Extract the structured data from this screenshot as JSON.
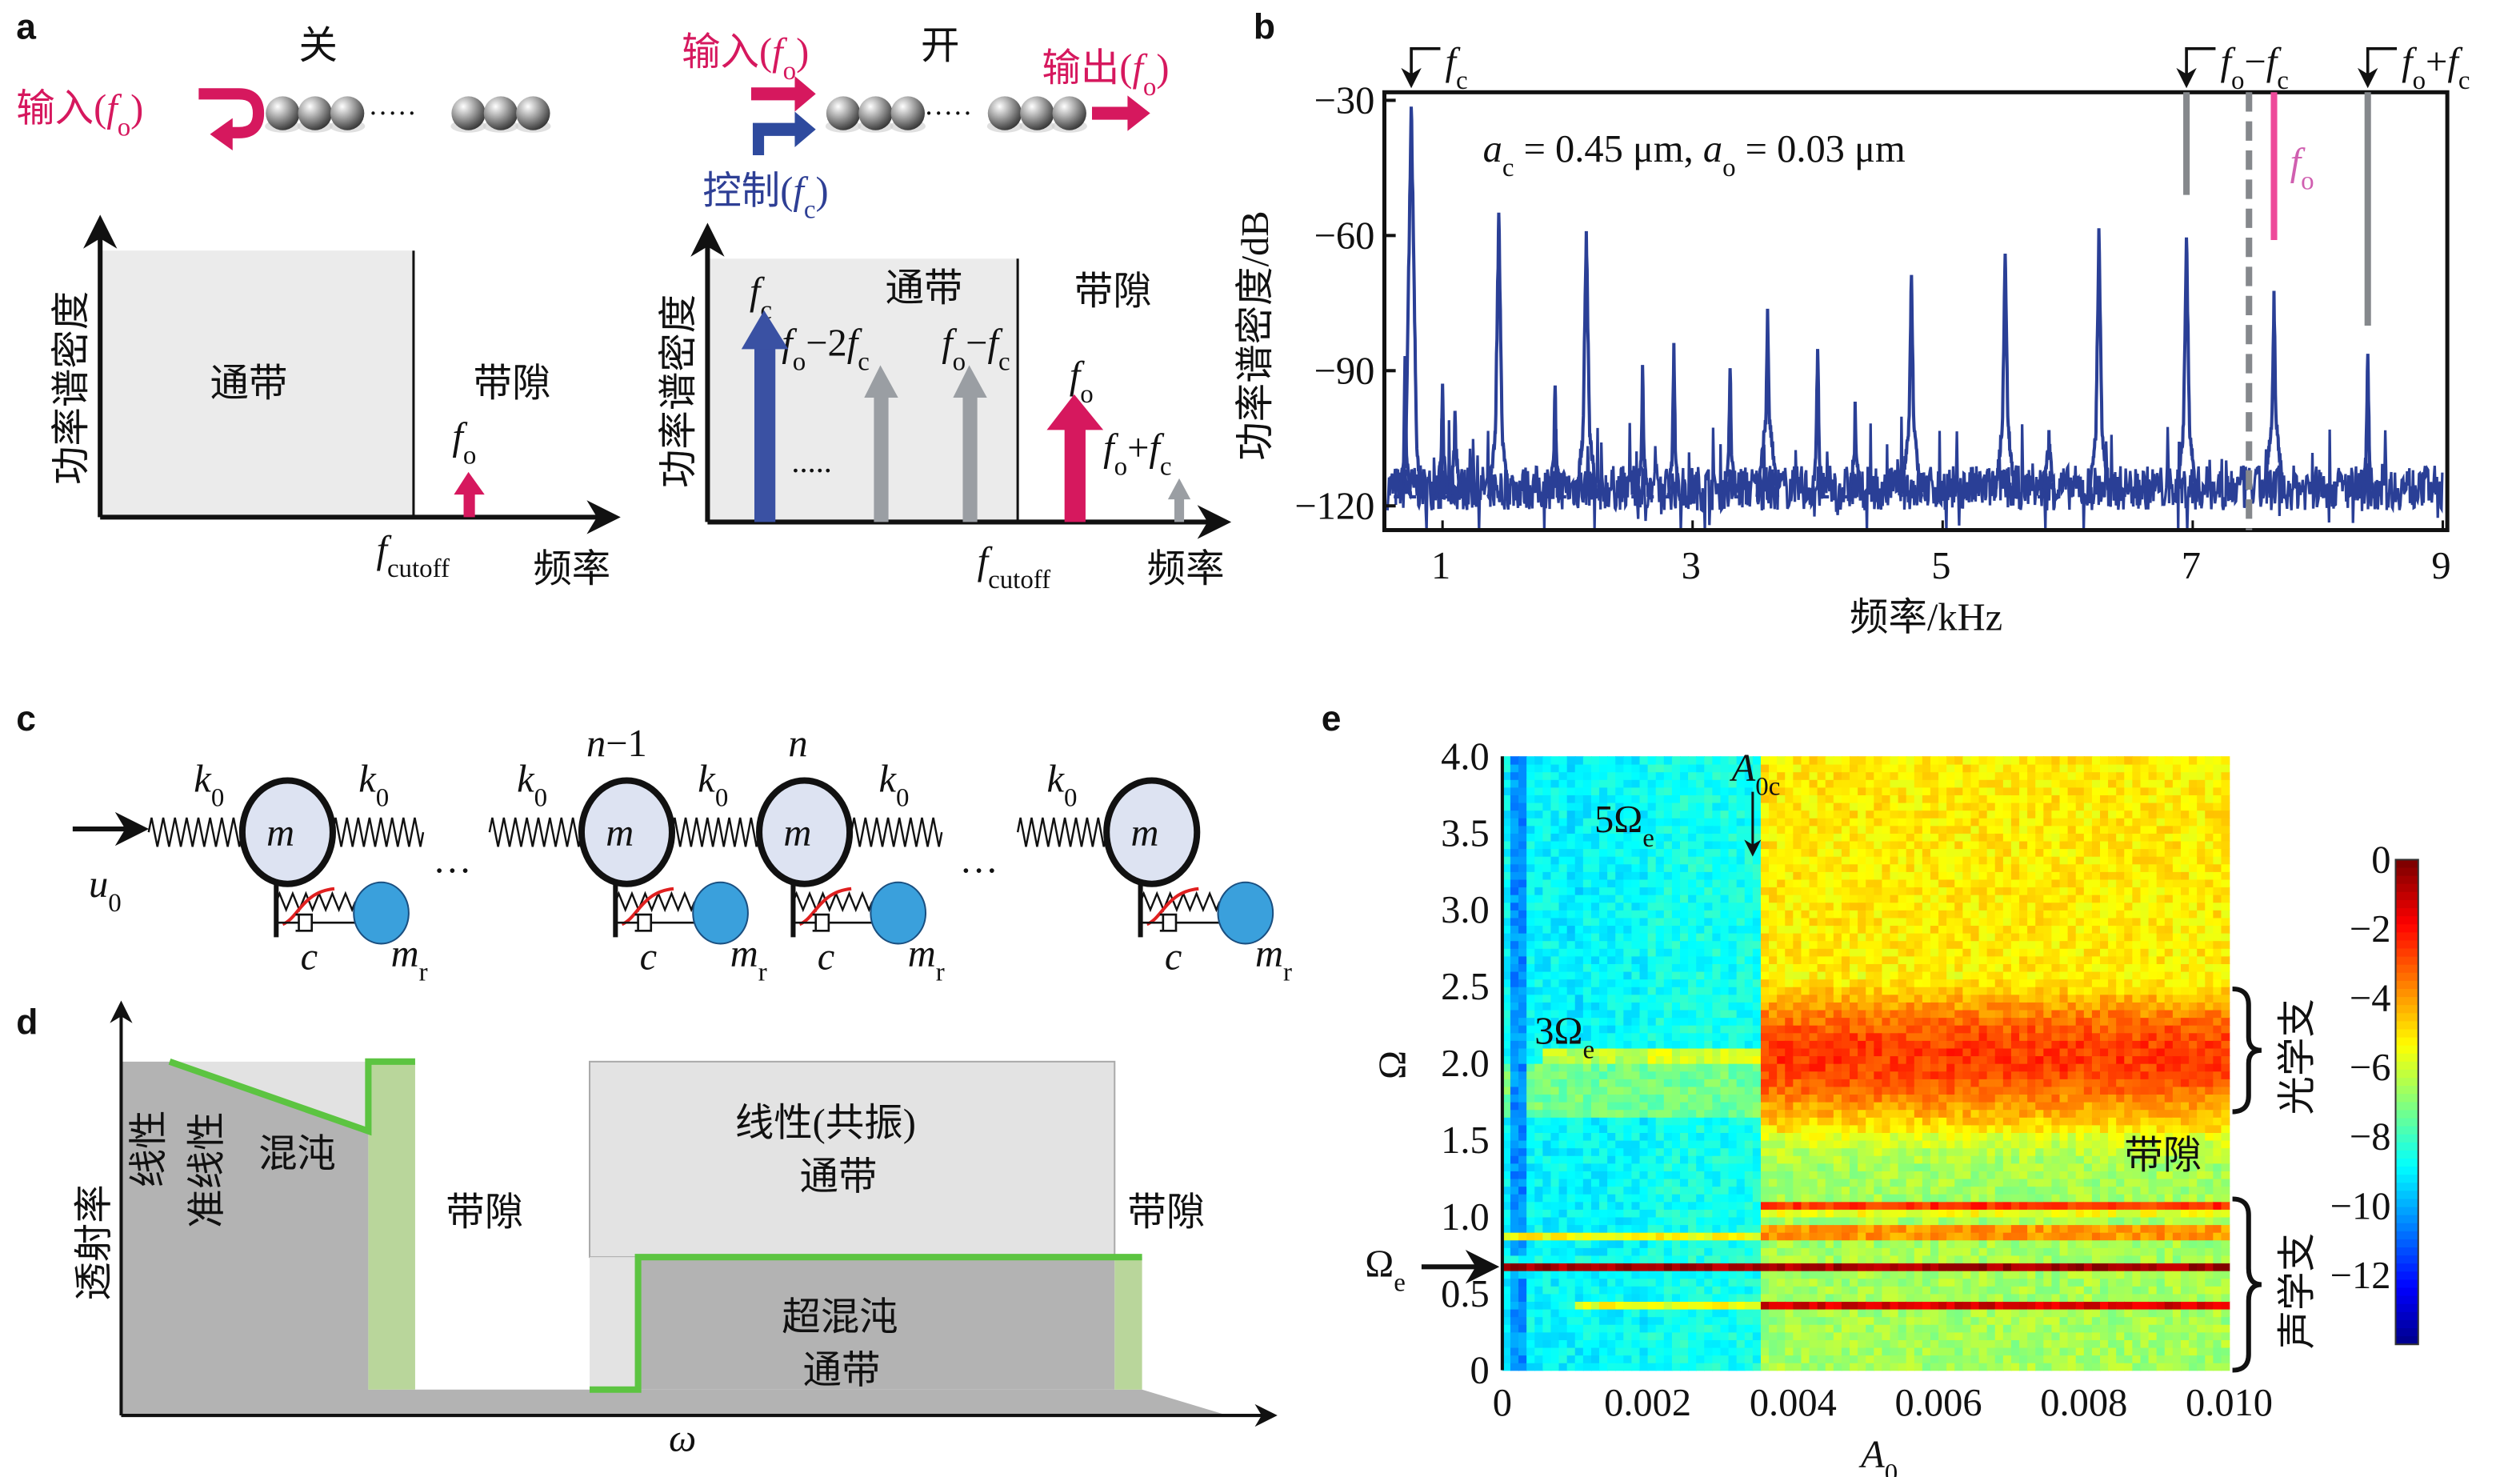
{
  "panel_labels": {
    "a": "a",
    "b": "b",
    "c": "c",
    "d": "d",
    "e": "e"
  },
  "colors": {
    "input_signal": "#d6185e",
    "control_signal": "#2e4a9e",
    "harmonic": "#9a9ea3",
    "spectrum": "#2a3f96",
    "fo_marker": "#ee4a9a",
    "chaos_line": "#5cc441",
    "chaos_band": "#b9d69b",
    "passband": "#ebebeb",
    "dark_region": "#b3b3b3"
  },
  "panel_a": {
    "off": {
      "title": "关",
      "input": "输入(*f*_{o})",
      "chain_dots": "·····",
      "passband": "通带",
      "bandgap": "带隙",
      "fo": "*f*_{o}",
      "fcutoff": "*f*_{cutoff}",
      "xlabel": "频率",
      "ylabel": "功率谱密度"
    },
    "on": {
      "title": "开",
      "input": "输入(*f*_{o})",
      "output": "输出(*f*_{o})",
      "control": "控制(*f*_{c})",
      "chain_dots": "·····",
      "passband": "通带",
      "bandgap": "带隙",
      "fc": "*f*_{c}",
      "fo_minus_2fc": "*f*_{o}−2*f*_{c}",
      "fo_minus_fc": "*f*_{o}−*f*_{c}",
      "fo": "*f*_{o}",
      "fo_plus_fc": "*f*_{o}+*f*_{c}",
      "more_dots": ".....",
      "fcutoff": "*f*_{cutoff}",
      "xlabel": "频率",
      "ylabel": "功率谱密度"
    }
  },
  "panel_c": {
    "k0": "*k*_{0}",
    "m": "*m*",
    "mr": "*m*_{r}",
    "c": "*c*",
    "u0": "*u*_{0}",
    "n_minus_1": "*n*−1",
    "n": "*n*",
    "ellipsis": "…"
  },
  "panel_d": {
    "ylabel": "透射率",
    "xlabel": "*ω*",
    "linear": "线性",
    "quasi_linear": "准线性",
    "chaos": "混沌",
    "bandgap_1": "带隙",
    "linear_resonant": "线性(共振)",
    "passband_1": "通带",
    "hyperchaos": "超混沌",
    "passband_2": "通带",
    "bandgap_2": "带隙"
  },
  "chart_data": [
    {
      "panel": "b",
      "type": "line",
      "xlabel": "频率/kHz",
      "ylabel": "功率谱密度/dB",
      "xlim": [
        0.55,
        9
      ],
      "ylim": [
        -125,
        -28
      ],
      "xticks": [
        1,
        3,
        5,
        7,
        9
      ],
      "yticks": [
        -30,
        -60,
        -90,
        -120
      ],
      "ytick_labels": [
        "−30",
        "−60",
        "−90",
        "−120"
      ],
      "annotation": "*a*_{c} = 0.45 μm, *a*_{o} = 0.03 μm",
      "noise_floor_db": -116,
      "peaks": [
        {
          "f": 0.75,
          "db": -30
        },
        {
          "f": 0.7,
          "db": -88
        },
        {
          "f": 1.0,
          "db": -92
        },
        {
          "f": 1.1,
          "db": -98
        },
        {
          "f": 1.45,
          "db": -55
        },
        {
          "f": 1.9,
          "db": -92
        },
        {
          "f": 2.15,
          "db": -58
        },
        {
          "f": 2.6,
          "db": -89
        },
        {
          "f": 2.85,
          "db": -85
        },
        {
          "f": 3.3,
          "db": -88
        },
        {
          "f": 3.6,
          "db": -77
        },
        {
          "f": 4.0,
          "db": -84
        },
        {
          "f": 4.3,
          "db": -97
        },
        {
          "f": 4.75,
          "db": -68
        },
        {
          "f": 5.5,
          "db": -63
        },
        {
          "f": 5.85,
          "db": -104
        },
        {
          "f": 6.25,
          "db": -59
        },
        {
          "f": 6.95,
          "db": -60
        },
        {
          "f": 7.65,
          "db": -73
        },
        {
          "f": 8.4,
          "db": -85
        }
      ],
      "markers": [
        {
          "label": "*f*_{c}",
          "f": 0.75,
          "style": "arrow"
        },
        {
          "label": "*f*_{o}−*f*_{c}",
          "f": 6.95,
          "style": "gray-bar",
          "bottom_db": -51
        },
        {
          "label": "",
          "f": 7.45,
          "style": "gray-dashed"
        },
        {
          "label": "*f*_{o}",
          "f": 7.65,
          "style": "pink-bar",
          "bottom_db": -61
        },
        {
          "label": "*f*_{o}+*f*_{c}",
          "f": 8.4,
          "style": "gray-bar",
          "bottom_db": -80
        }
      ]
    },
    {
      "panel": "e",
      "type": "heatmap",
      "xlabel": "*A*_{0}",
      "ylabel": "Ω",
      "xlim": [
        0,
        0.01
      ],
      "ylim": [
        0,
        4
      ],
      "xticks": [
        "0",
        "0.002",
        "0.004",
        "0.006",
        "0.008",
        "0.010"
      ],
      "yticks": [
        "0",
        "0.5",
        "1.0",
        "1.5",
        "2.0",
        "2.5",
        "3.0",
        "3.5",
        "4.0"
      ],
      "colorbar": {
        "range": [
          -14,
          0
        ],
        "ticks": [
          "0",
          "−2",
          "−4",
          "−6",
          "−8",
          "−10",
          "−12"
        ],
        "colormap": "jet"
      },
      "critical_A0": 0.0035,
      "annotations": {
        "A0c": "*A*_{0c}",
        "five_omega_e": "5Ω_{e}",
        "three_omega_e": "3Ω_{e}",
        "omega_e": "Ω_{e}",
        "bandgap": "带隙",
        "optical_branch": "光学支",
        "acoustic_branch": "声学支"
      }
    }
  ]
}
